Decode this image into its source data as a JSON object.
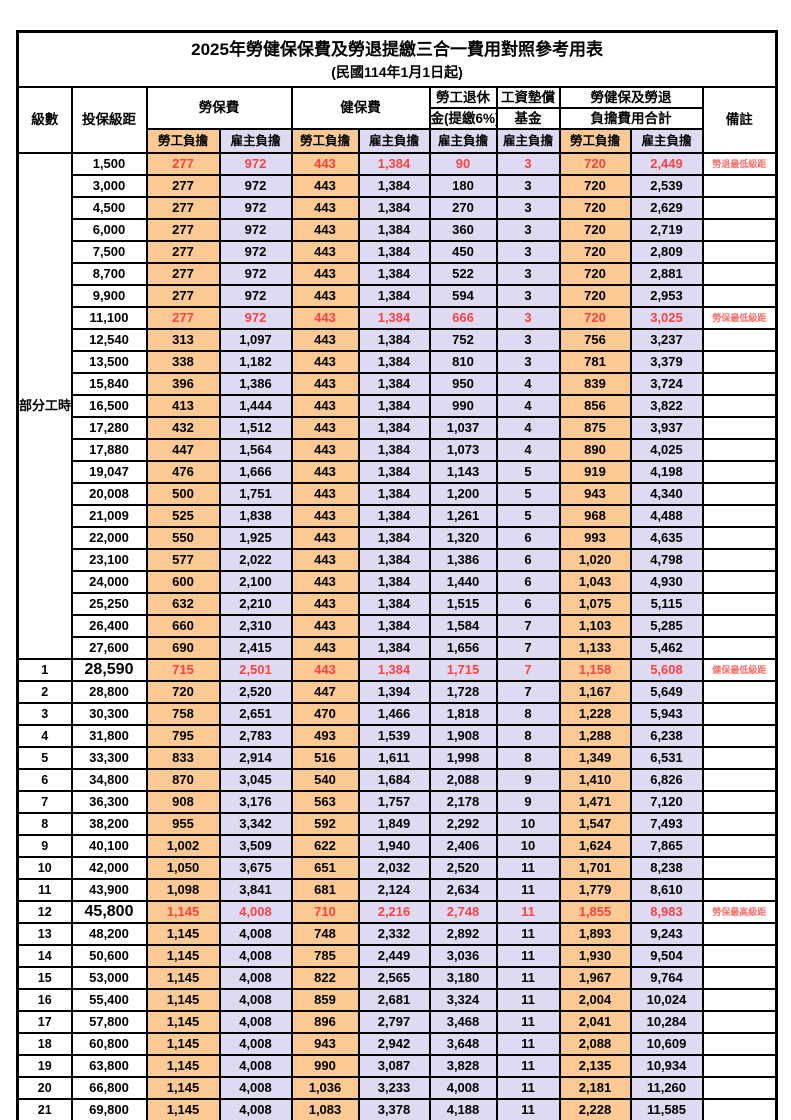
{
  "title": "2025年勞健保保費及勞退提繳三合一費用對照參考用表",
  "subtitle": "(民國114年1月1日起)",
  "columns": {
    "level": "級數",
    "bracket": "投保級距",
    "labor_fee": "勞保費",
    "health_fee": "健保費",
    "pension_line1": "勞工退休",
    "pension_line2": "金(提繳6%)",
    "wage_fund_line1": "工資墊償",
    "wage_fund_line2": "基金",
    "total_line1": "勞健保及勞退",
    "total_line2": "負擔費用合計",
    "remark": "備註",
    "employee_share": "勞工負擔",
    "employer_share": "雇主負擔"
  },
  "part_time_label": "部分工時",
  "colors": {
    "employee_bg": "#FAC994",
    "employer_bg": "#DEDAF2",
    "highlight_text": "#FF4343",
    "note_text": "#F5706A"
  },
  "rows": [
    {
      "bracket": "1,500",
      "values": [
        "277",
        "972",
        "443",
        "1,384",
        "90",
        "3",
        "720",
        "2,449"
      ],
      "note": "勞退最低級距",
      "highlight": true
    },
    {
      "bracket": "3,000",
      "values": [
        "277",
        "972",
        "443",
        "1,384",
        "180",
        "3",
        "720",
        "2,539"
      ]
    },
    {
      "bracket": "4,500",
      "values": [
        "277",
        "972",
        "443",
        "1,384",
        "270",
        "3",
        "720",
        "2,629"
      ]
    },
    {
      "bracket": "6,000",
      "values": [
        "277",
        "972",
        "443",
        "1,384",
        "360",
        "3",
        "720",
        "2,719"
      ]
    },
    {
      "bracket": "7,500",
      "values": [
        "277",
        "972",
        "443",
        "1,384",
        "450",
        "3",
        "720",
        "2,809"
      ]
    },
    {
      "bracket": "8,700",
      "values": [
        "277",
        "972",
        "443",
        "1,384",
        "522",
        "3",
        "720",
        "2,881"
      ]
    },
    {
      "bracket": "9,900",
      "values": [
        "277",
        "972",
        "443",
        "1,384",
        "594",
        "3",
        "720",
        "2,953"
      ]
    },
    {
      "bracket": "11,100",
      "values": [
        "277",
        "972",
        "443",
        "1,384",
        "666",
        "3",
        "720",
        "3,025"
      ],
      "note": "勞保最低級距",
      "highlight": true
    },
    {
      "bracket": "12,540",
      "values": [
        "313",
        "1,097",
        "443",
        "1,384",
        "752",
        "3",
        "756",
        "3,237"
      ]
    },
    {
      "bracket": "13,500",
      "values": [
        "338",
        "1,182",
        "443",
        "1,384",
        "810",
        "3",
        "781",
        "3,379"
      ]
    },
    {
      "bracket": "15,840",
      "values": [
        "396",
        "1,386",
        "443",
        "1,384",
        "950",
        "4",
        "839",
        "3,724"
      ]
    },
    {
      "bracket": "16,500",
      "values": [
        "413",
        "1,444",
        "443",
        "1,384",
        "990",
        "4",
        "856",
        "3,822"
      ]
    },
    {
      "bracket": "17,280",
      "values": [
        "432",
        "1,512",
        "443",
        "1,384",
        "1,037",
        "4",
        "875",
        "3,937"
      ]
    },
    {
      "bracket": "17,880",
      "values": [
        "447",
        "1,564",
        "443",
        "1,384",
        "1,073",
        "4",
        "890",
        "4,025"
      ]
    },
    {
      "bracket": "19,047",
      "values": [
        "476",
        "1,666",
        "443",
        "1,384",
        "1,143",
        "5",
        "919",
        "4,198"
      ]
    },
    {
      "bracket": "20,008",
      "values": [
        "500",
        "1,751",
        "443",
        "1,384",
        "1,200",
        "5",
        "943",
        "4,340"
      ]
    },
    {
      "bracket": "21,009",
      "values": [
        "525",
        "1,838",
        "443",
        "1,384",
        "1,261",
        "5",
        "968",
        "4,488"
      ]
    },
    {
      "bracket": "22,000",
      "values": [
        "550",
        "1,925",
        "443",
        "1,384",
        "1,320",
        "6",
        "993",
        "4,635"
      ]
    },
    {
      "bracket": "23,100",
      "values": [
        "577",
        "2,022",
        "443",
        "1,384",
        "1,386",
        "6",
        "1,020",
        "4,798"
      ]
    },
    {
      "bracket": "24,000",
      "values": [
        "600",
        "2,100",
        "443",
        "1,384",
        "1,440",
        "6",
        "1,043",
        "4,930"
      ]
    },
    {
      "bracket": "25,250",
      "values": [
        "632",
        "2,210",
        "443",
        "1,384",
        "1,515",
        "6",
        "1,075",
        "5,115"
      ]
    },
    {
      "bracket": "26,400",
      "values": [
        "660",
        "2,310",
        "443",
        "1,384",
        "1,584",
        "7",
        "1,103",
        "5,285"
      ]
    },
    {
      "bracket": "27,600",
      "values": [
        "690",
        "2,415",
        "443",
        "1,384",
        "1,656",
        "7",
        "1,133",
        "5,462"
      ]
    },
    {
      "level": "1",
      "bracket": "28,590",
      "values": [
        "715",
        "2,501",
        "443",
        "1,384",
        "1,715",
        "7",
        "1,158",
        "5,608"
      ],
      "note": "健保最低級距",
      "highlight": true,
      "big": true
    },
    {
      "level": "2",
      "bracket": "28,800",
      "values": [
        "720",
        "2,520",
        "447",
        "1,394",
        "1,728",
        "7",
        "1,167",
        "5,649"
      ]
    },
    {
      "level": "3",
      "bracket": "30,300",
      "values": [
        "758",
        "2,651",
        "470",
        "1,466",
        "1,818",
        "8",
        "1,228",
        "5,943"
      ]
    },
    {
      "level": "4",
      "bracket": "31,800",
      "values": [
        "795",
        "2,783",
        "493",
        "1,539",
        "1,908",
        "8",
        "1,288",
        "6,238"
      ]
    },
    {
      "level": "5",
      "bracket": "33,300",
      "values": [
        "833",
        "2,914",
        "516",
        "1,611",
        "1,998",
        "8",
        "1,349",
        "6,531"
      ]
    },
    {
      "level": "6",
      "bracket": "34,800",
      "values": [
        "870",
        "3,045",
        "540",
        "1,684",
        "2,088",
        "9",
        "1,410",
        "6,826"
      ]
    },
    {
      "level": "7",
      "bracket": "36,300",
      "values": [
        "908",
        "3,176",
        "563",
        "1,757",
        "2,178",
        "9",
        "1,471",
        "7,120"
      ]
    },
    {
      "level": "8",
      "bracket": "38,200",
      "values": [
        "955",
        "3,342",
        "592",
        "1,849",
        "2,292",
        "10",
        "1,547",
        "7,493"
      ]
    },
    {
      "level": "9",
      "bracket": "40,100",
      "values": [
        "1,002",
        "3,509",
        "622",
        "1,940",
        "2,406",
        "10",
        "1,624",
        "7,865"
      ]
    },
    {
      "level": "10",
      "bracket": "42,000",
      "values": [
        "1,050",
        "3,675",
        "651",
        "2,032",
        "2,520",
        "11",
        "1,701",
        "8,238"
      ]
    },
    {
      "level": "11",
      "bracket": "43,900",
      "values": [
        "1,098",
        "3,841",
        "681",
        "2,124",
        "2,634",
        "11",
        "1,779",
        "8,610"
      ]
    },
    {
      "level": "12",
      "bracket": "45,800",
      "values": [
        "1,145",
        "4,008",
        "710",
        "2,216",
        "2,748",
        "11",
        "1,855",
        "8,983"
      ],
      "note": "勞保最高級距",
      "highlight": true,
      "big": true
    },
    {
      "level": "13",
      "bracket": "48,200",
      "values": [
        "1,145",
        "4,008",
        "748",
        "2,332",
        "2,892",
        "11",
        "1,893",
        "9,243"
      ]
    },
    {
      "level": "14",
      "bracket": "50,600",
      "values": [
        "1,145",
        "4,008",
        "785",
        "2,449",
        "3,036",
        "11",
        "1,930",
        "9,504"
      ]
    },
    {
      "level": "15",
      "bracket": "53,000",
      "values": [
        "1,145",
        "4,008",
        "822",
        "2,565",
        "3,180",
        "11",
        "1,967",
        "9,764"
      ]
    },
    {
      "level": "16",
      "bracket": "55,400",
      "values": [
        "1,145",
        "4,008",
        "859",
        "2,681",
        "3,324",
        "11",
        "2,004",
        "10,024"
      ]
    },
    {
      "level": "17",
      "bracket": "57,800",
      "values": [
        "1,145",
        "4,008",
        "896",
        "2,797",
        "3,468",
        "11",
        "2,041",
        "10,284"
      ]
    },
    {
      "level": "18",
      "bracket": "60,800",
      "values": [
        "1,145",
        "4,008",
        "943",
        "2,942",
        "3,648",
        "11",
        "2,088",
        "10,609"
      ]
    },
    {
      "level": "19",
      "bracket": "63,800",
      "values": [
        "1,145",
        "4,008",
        "990",
        "3,087",
        "3,828",
        "11",
        "2,135",
        "10,934"
      ]
    },
    {
      "level": "20",
      "bracket": "66,800",
      "values": [
        "1,145",
        "4,008",
        "1,036",
        "3,233",
        "4,008",
        "11",
        "2,181",
        "11,260"
      ]
    },
    {
      "level": "21",
      "bracket": "69,800",
      "values": [
        "1,145",
        "4,008",
        "1,083",
        "3,378",
        "4,188",
        "11",
        "2,228",
        "11,585"
      ]
    }
  ]
}
